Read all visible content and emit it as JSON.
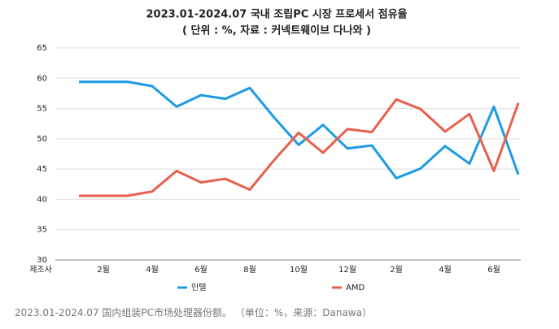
{
  "chart_data": {
    "type": "line",
    "title": "2023.01-2024.07 국내 조립PC 시장 프로세서 점유율",
    "subtitle": "( 단위 : %, 자료 : 커넥트웨이브 다나와 )",
    "x_label": "제조사",
    "categories": [
      null,
      "2월",
      null,
      "4월",
      null,
      "6월",
      null,
      "8월",
      null,
      "10월",
      null,
      "12월",
      null,
      "2월",
      null,
      "4월",
      null,
      "6월",
      null
    ],
    "series": [
      {
        "name": "인텔",
        "color": "#1b9be3",
        "values": [
          59.4,
          59.4,
          59.4,
          58.7,
          55.3,
          57.2,
          56.6,
          58.4,
          53.5,
          49.0,
          52.3,
          48.4,
          48.9,
          43.5,
          45.1,
          48.8,
          45.9,
          55.3,
          44.1
        ]
      },
      {
        "name": "AMD",
        "color": "#e8604c",
        "values": [
          40.6,
          40.6,
          40.6,
          41.3,
          44.7,
          42.8,
          43.4,
          41.6,
          46.5,
          51.0,
          47.7,
          51.6,
          51.1,
          56.5,
          54.9,
          51.2,
          54.1,
          44.7,
          55.9
        ]
      }
    ],
    "ylim": [
      30,
      65
    ],
    "yticks": [
      30,
      35,
      40,
      45,
      50,
      55,
      60,
      65
    ],
    "grid": true,
    "legend": "bottom",
    "caption": "2023.01-2024.07 国内组装PC市场处理器份额。 （单位：%，来源：Danawa）"
  }
}
